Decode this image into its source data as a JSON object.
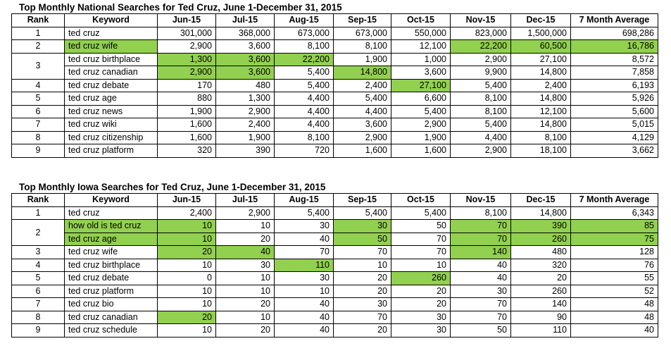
{
  "highlight_color": "#92d050",
  "table1": {
    "title": "Top Monthly National Searches for Ted Cruz, June 1-December 31, 2015",
    "headers": [
      "Rank",
      "Keyword",
      "Jun-15",
      "Jul-15",
      "Aug-15",
      "Sep-15",
      "Oct-15",
      "Nov-15",
      "Dec-15",
      "7 Month Average"
    ],
    "rows": [
      {
        "rank": "1",
        "keyword": "ted cruz",
        "values": [
          "301,000",
          "368,000",
          "673,000",
          "673,000",
          "550,000",
          "823,000",
          "1,500,000",
          "698,286"
        ],
        "hl": []
      },
      {
        "rank": "2",
        "keyword": "ted cruz wife",
        "values": [
          "2,900",
          "3,600",
          "8,100",
          "8,100",
          "12,100",
          "22,200",
          "60,500",
          "16,786"
        ],
        "hl": [
          1,
          7,
          8,
          9
        ]
      },
      {
        "rank": "3",
        "keyword": "ted cruz birthplace",
        "values": [
          "1,300",
          "3,600",
          "22,200",
          "1,900",
          "1,000",
          "2,900",
          "27,100",
          "8,572"
        ],
        "hl": [
          2,
          3,
          4
        ]
      },
      {
        "rank": "",
        "keyword": "ted cruz canadian",
        "values": [
          "2,900",
          "3,600",
          "5,400",
          "14,800",
          "3,600",
          "9,900",
          "14,800",
          "7,858"
        ],
        "hl": [
          2,
          3,
          5
        ]
      },
      {
        "rank": "4",
        "keyword": "ted cruz debate",
        "values": [
          "170",
          "480",
          "5,400",
          "2,400",
          "27,100",
          "5,400",
          "2,400",
          "6,193"
        ],
        "hl": [
          6
        ]
      },
      {
        "rank": "5",
        "keyword": "ted cruz age",
        "values": [
          "880",
          "1,300",
          "4,400",
          "5,400",
          "6,600",
          "8,100",
          "14,800",
          "5,926"
        ],
        "hl": []
      },
      {
        "rank": "6",
        "keyword": "ted cruz news",
        "values": [
          "1,900",
          "2,900",
          "4,400",
          "4,400",
          "5,400",
          "8,100",
          "12,100",
          "5,600"
        ],
        "hl": []
      },
      {
        "rank": "7",
        "keyword": "ted cruz wiki",
        "values": [
          "1,600",
          "2,400",
          "4,400",
          "3,600",
          "2,900",
          "5,400",
          "14,800",
          "5,015"
        ],
        "hl": []
      },
      {
        "rank": "8",
        "keyword": "ted cruz citizenship",
        "values": [
          "1,600",
          "1,900",
          "8,100",
          "2,900",
          "1,900",
          "4,400",
          "8,100",
          "4,129"
        ],
        "hl": []
      },
      {
        "rank": "9",
        "keyword": "ted cruz platform",
        "values": [
          "320",
          "390",
          "720",
          "1,600",
          "1,600",
          "2,900",
          "18,100",
          "3,662"
        ],
        "hl": []
      }
    ]
  },
  "table2": {
    "title": "Top Monthly Iowa Searches for Ted Cruz, June 1-December 31, 2015",
    "headers": [
      "Rank",
      "Keyword",
      "Jun-15",
      "Jul-15",
      "Aug-15",
      "Sep-15",
      "Oct-15",
      "Nov-15",
      "Dec-15",
      "7 Month Average"
    ],
    "rows": [
      {
        "rank": "1",
        "keyword": "ted cruz",
        "values": [
          "2,400",
          "2,900",
          "5,400",
          "5,400",
          "5,400",
          "8,100",
          "14,800",
          "6,343"
        ],
        "hl": []
      },
      {
        "rank": "2",
        "keyword": "how old is ted cruz",
        "values": [
          "10",
          "10",
          "30",
          "30",
          "50",
          "70",
          "390",
          "85"
        ],
        "hl": [
          1,
          2,
          5,
          7,
          8,
          9
        ]
      },
      {
        "rank": "",
        "keyword": "ted cruz age",
        "values": [
          "10",
          "20",
          "40",
          "50",
          "70",
          "70",
          "260",
          "75"
        ],
        "hl": [
          1,
          2,
          5,
          7,
          8,
          9
        ]
      },
      {
        "rank": "3",
        "keyword": "ted cruz wife",
        "values": [
          "20",
          "40",
          "70",
          "70",
          "70",
          "140",
          "480",
          "128"
        ],
        "hl": [
          2,
          3,
          7
        ]
      },
      {
        "rank": "4",
        "keyword": "ted cruz birthplace",
        "values": [
          "10",
          "30",
          "110",
          "10",
          "10",
          "40",
          "320",
          "76"
        ],
        "hl": [
          4
        ]
      },
      {
        "rank": "5",
        "keyword": "ted cruz debate",
        "values": [
          "0",
          "10",
          "30",
          "20",
          "260",
          "40",
          "20",
          "55"
        ],
        "hl": [
          6
        ]
      },
      {
        "rank": "6",
        "keyword": "ted cruz platform",
        "values": [
          "10",
          "10",
          "10",
          "20",
          "20",
          "30",
          "260",
          "52"
        ],
        "hl": []
      },
      {
        "rank": "7",
        "keyword": "ted cruz bio",
        "values": [
          "10",
          "20",
          "40",
          "30",
          "20",
          "70",
          "140",
          "48"
        ],
        "hl": []
      },
      {
        "rank": "8",
        "keyword": "ted cruz canadian",
        "values": [
          "20",
          "10",
          "40",
          "70",
          "30",
          "70",
          "90",
          "48"
        ],
        "hl": [
          2
        ]
      },
      {
        "rank": "9",
        "keyword": "ted cruz schedule",
        "values": [
          "10",
          "20",
          "40",
          "20",
          "30",
          "50",
          "110",
          "40"
        ],
        "hl": []
      }
    ]
  }
}
